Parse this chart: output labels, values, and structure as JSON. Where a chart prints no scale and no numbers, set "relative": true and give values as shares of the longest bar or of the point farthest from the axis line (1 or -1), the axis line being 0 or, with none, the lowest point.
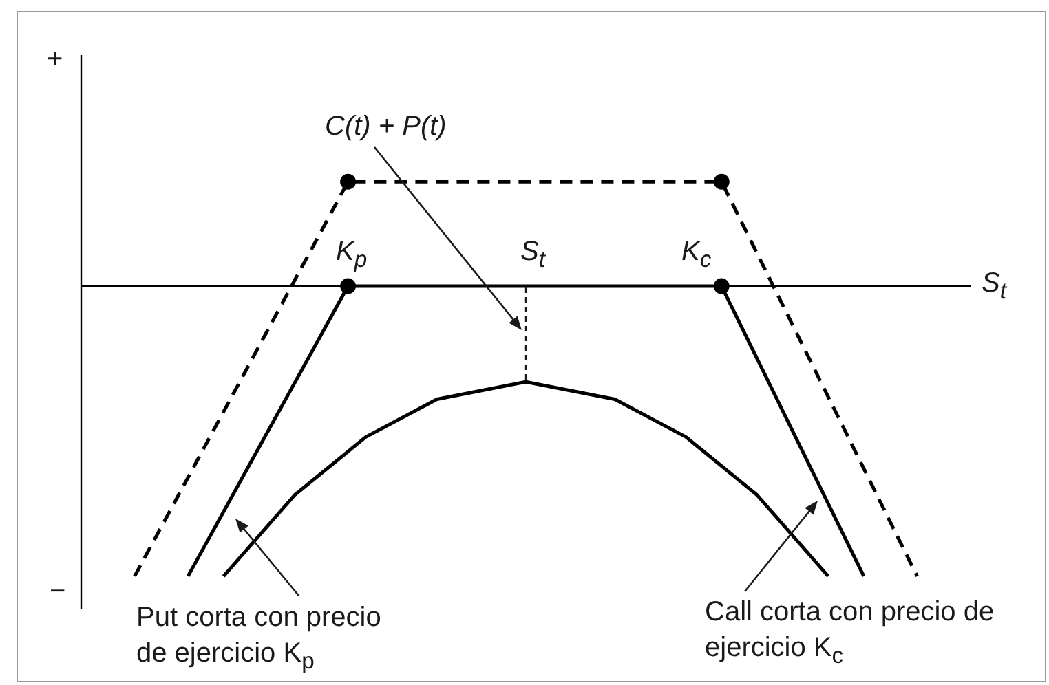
{
  "chart_data": {
    "type": "line",
    "relative": true,
    "tick_labels": false,
    "legend": false,
    "xlabel": "S$_{t}$",
    "categories": [
      null,
      null,
      null,
      null,
      null,
      null,
      null,
      null,
      null,
      null,
      null,
      null,
      null,
      null,
      null,
      null,
      null,
      null,
      null,
      null,
      null,
      null,
      null,
      null,
      null,
      null,
      null,
      null,
      null,
      null,
      null,
      null,
      null,
      null,
      null,
      null,
      null,
      null,
      null,
      null,
      null,
      null,
      null,
      null,
      null,
      null,
      null,
      null,
      null,
      null,
      null
    ],
    "series": [
      {
        "color": "#000000",
        "line_style": "dashed",
        "marker": "circle",
        "values": [
          null,
          null,
          null,
          -1,
          null,
          null,
          null,
          null,
          null,
          null,
          null,
          null,
          null,
          null,
          null,
          0.36,
          null,
          null,
          null,
          null,
          null,
          null,
          null,
          null,
          null,
          null,
          null,
          null,
          null,
          null,
          null,
          null,
          null,
          null,
          null,
          null,
          0.36,
          null,
          null,
          null,
          null,
          null,
          null,
          null,
          null,
          null,
          null,
          -1,
          null,
          null,
          null
        ]
      },
      {
        "color": "#000000",
        "line_style": "solid",
        "marker": "circle",
        "values": [
          null,
          null,
          null,
          null,
          null,
          null,
          -1,
          null,
          null,
          null,
          null,
          null,
          null,
          null,
          null,
          0,
          null,
          null,
          null,
          null,
          null,
          null,
          null,
          null,
          null,
          null,
          null,
          null,
          null,
          null,
          null,
          null,
          null,
          null,
          null,
          null,
          0,
          null,
          null,
          null,
          null,
          null,
          null,
          null,
          -1,
          null,
          null,
          null,
          null,
          null,
          null
        ]
      },
      {
        "color": "#000000",
        "line_style": "solid",
        "marker": "none",
        "values": [
          null,
          null,
          null,
          null,
          null,
          null,
          null,
          null,
          -1,
          null,
          null,
          null,
          -0.72,
          null,
          null,
          null,
          -0.52,
          null,
          null,
          null,
          -0.39,
          null,
          null,
          null,
          null,
          -0.33,
          null,
          null,
          null,
          null,
          -0.39,
          null,
          null,
          null,
          -0.52,
          null,
          null,
          null,
          -0.72,
          null,
          null,
          null,
          -1,
          null,
          null,
          null,
          null,
          null,
          null,
          null,
          null
        ]
      }
    ],
    "annotations": [
      "+",
      "−",
      "K$_{p}$",
      "S$_{t}$",
      "K$_{c}$",
      "C(t) + P(t)",
      "Put corta con precio de ejercicio K$_{p}$",
      "Call corta con precio de ejercicio K$_{c}$"
    ]
  }
}
